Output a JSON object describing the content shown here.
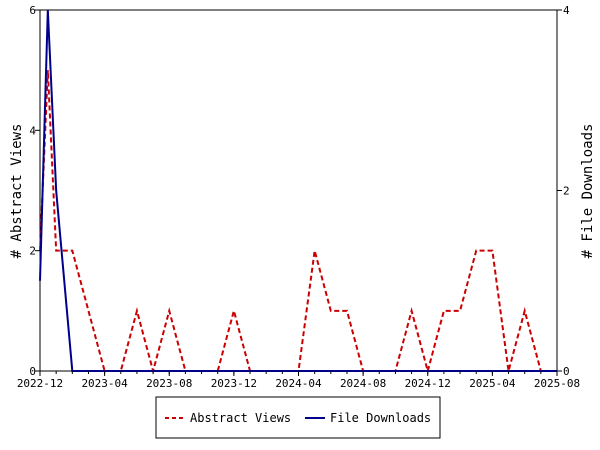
{
  "chart_data": {
    "type": "line",
    "title": "",
    "xlabel": "",
    "ylabel": "# Abstract Views",
    "y2label": "# File Downloads",
    "x_ticks": [
      "2022-12",
      "2023-04",
      "2023-08",
      "2023-12",
      "2024-04",
      "2024-08",
      "2024-12",
      "2025-04",
      "2025-08"
    ],
    "ylim": [
      0,
      6
    ],
    "y_ticks": [
      "0",
      "2",
      "4",
      "6"
    ],
    "y2lim": [
      0,
      4
    ],
    "y2_ticks": [
      "0",
      "2",
      "4"
    ],
    "grid": false,
    "legend_position": "bottom",
    "x": [
      "2022-12",
      "2023-01",
      "2023-02",
      "2023-03",
      "2023-04",
      "2023-05",
      "2023-06",
      "2023-07",
      "2023-08",
      "2023-09",
      "2023-10",
      "2023-11",
      "2023-12",
      "2024-01",
      "2024-02",
      "2024-03",
      "2024-04",
      "2024-05",
      "2024-06",
      "2024-07",
      "2024-08",
      "2024-09",
      "2024-10",
      "2024-11",
      "2024-12",
      "2025-01",
      "2025-02",
      "2025-03",
      "2025-04",
      "2025-05",
      "2025-06",
      "2025-07",
      "2025-08"
    ],
    "series": [
      {
        "name": "Abstract Views",
        "axis": "left",
        "color": "#cc0000",
        "dash": "dashed",
        "points": [
          [
            "2022-12-01",
            2
          ],
          [
            "2022-12-16",
            5
          ],
          [
            "2023-01-01",
            2
          ],
          [
            "2023-02-01",
            2
          ],
          [
            "2023-03-01",
            1
          ],
          [
            "2023-04-01",
            0
          ],
          [
            "2023-05-01",
            0
          ],
          [
            "2023-06-01",
            1
          ],
          [
            "2023-07-01",
            0
          ],
          [
            "2023-08-01",
            1
          ],
          [
            "2023-09-01",
            0
          ],
          [
            "2023-10-01",
            0
          ],
          [
            "2023-11-01",
            0
          ],
          [
            "2023-12-01",
            1
          ],
          [
            "2024-01-01",
            0
          ],
          [
            "2024-02-01",
            0
          ],
          [
            "2024-03-01",
            0
          ],
          [
            "2024-04-01",
            0
          ],
          [
            "2024-05-01",
            2
          ],
          [
            "2024-06-01",
            1
          ],
          [
            "2024-07-01",
            1
          ],
          [
            "2024-08-01",
            0
          ],
          [
            "2024-09-01",
            0
          ],
          [
            "2024-10-01",
            0
          ],
          [
            "2024-11-01",
            1
          ],
          [
            "2024-12-01",
            0
          ],
          [
            "2025-01-01",
            1
          ],
          [
            "2025-02-01",
            1
          ],
          [
            "2025-03-01",
            2
          ],
          [
            "2025-04-01",
            2
          ],
          [
            "2025-05-01",
            0
          ],
          [
            "2025-06-01",
            1
          ],
          [
            "2025-07-01",
            0
          ],
          [
            "2025-08-01",
            0
          ]
        ]
      },
      {
        "name": "File Downloads",
        "axis": "right",
        "color": "#00008b",
        "dash": "solid",
        "points": [
          [
            "2022-12-01",
            1
          ],
          [
            "2022-12-16",
            4
          ],
          [
            "2023-01-01",
            2
          ],
          [
            "2023-02-01",
            0
          ],
          [
            "2023-03-01",
            0
          ],
          [
            "2023-04-01",
            0
          ],
          [
            "2023-05-01",
            0
          ],
          [
            "2023-06-01",
            0
          ],
          [
            "2023-07-01",
            0
          ],
          [
            "2023-08-01",
            0
          ],
          [
            "2023-09-01",
            0
          ],
          [
            "2023-10-01",
            0
          ],
          [
            "2023-11-01",
            0
          ],
          [
            "2023-12-01",
            0
          ],
          [
            "2024-01-01",
            0
          ],
          [
            "2024-02-01",
            0
          ],
          [
            "2024-03-01",
            0
          ],
          [
            "2024-04-01",
            0
          ],
          [
            "2024-05-01",
            0
          ],
          [
            "2024-06-01",
            0
          ],
          [
            "2024-07-01",
            0
          ],
          [
            "2024-08-01",
            0
          ],
          [
            "2024-09-01",
            0
          ],
          [
            "2024-10-01",
            0
          ],
          [
            "2024-11-01",
            0
          ],
          [
            "2024-12-01",
            0
          ],
          [
            "2025-01-01",
            0
          ],
          [
            "2025-02-01",
            0
          ],
          [
            "2025-03-01",
            0
          ],
          [
            "2025-04-01",
            0
          ],
          [
            "2025-05-01",
            0
          ],
          [
            "2025-06-01",
            0
          ],
          [
            "2025-07-01",
            0
          ],
          [
            "2025-08-01",
            0
          ]
        ]
      }
    ]
  }
}
